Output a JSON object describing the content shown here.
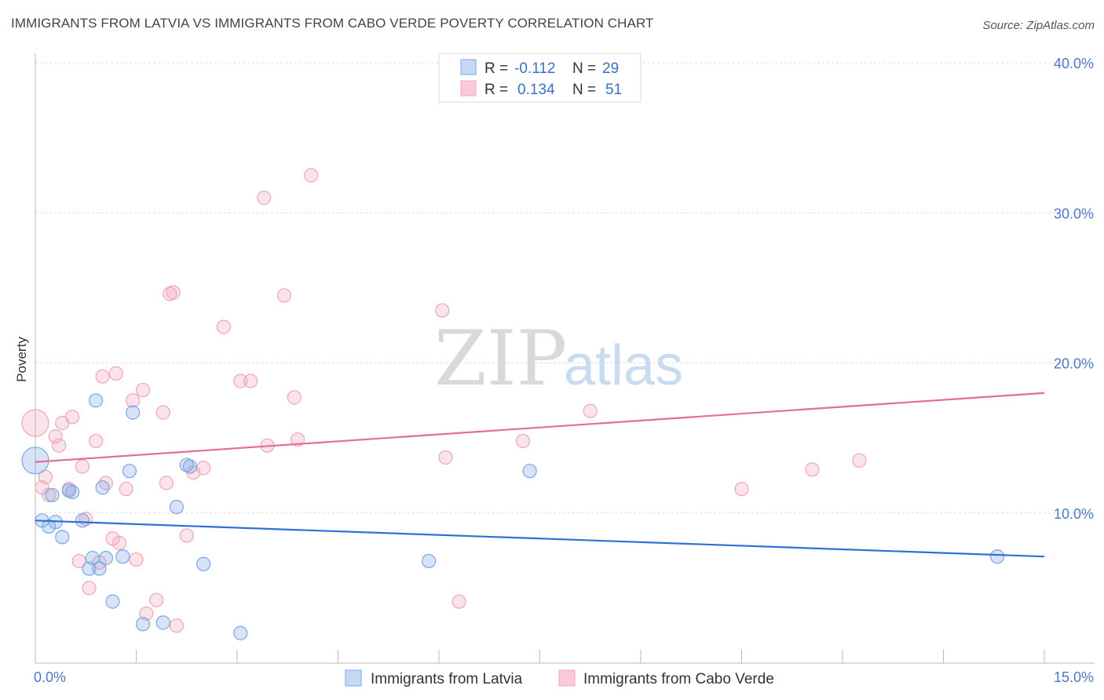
{
  "title": "IMMIGRANTS FROM LATVIA VS IMMIGRANTS FROM CABO VERDE POVERTY CORRELATION CHART",
  "source": "Source: ZipAtlas.com",
  "watermark": {
    "zip": "ZIP",
    "atlas": "atlas"
  },
  "legend": {
    "rows": [
      {
        "r_label": "R =",
        "r_value": "-0.112",
        "n_label": "N =",
        "n_value": "29"
      },
      {
        "r_label": "R =",
        "r_value": "0.134",
        "n_label": "N =",
        "n_value": "51"
      }
    ]
  },
  "bottom_legend": [
    "Immigrants from Latvia",
    "Immigrants from Cabo Verde"
  ],
  "chart_data": {
    "type": "scatter",
    "title": "IMMIGRANTS FROM LATVIA VS IMMIGRANTS FROM CABO VERDE POVERTY CORRELATION CHART",
    "xlabel": "",
    "ylabel": "Poverty",
    "xlim": [
      0,
      15
    ],
    "ylim": [
      0,
      40
    ],
    "x_tick_labels": [
      "0.0%",
      "15.0%"
    ],
    "y_tick_values": [
      10,
      20,
      30,
      40
    ],
    "y_tick_labels": [
      "10.0%",
      "20.0%",
      "30.0%",
      "40.0%"
    ],
    "grid": true,
    "legend_position": "top-center",
    "colors": {
      "latvia": "#7aa6e6",
      "cabo_verde": "#f0a5bb",
      "latvia_line": "#2f6fd6",
      "cabo_verde_line": "#e56d96"
    },
    "series": [
      {
        "name": "Immigrants from Latvia",
        "color": "#7aa6e6",
        "trend": {
          "x": [
            0,
            15
          ],
          "y": [
            9.5,
            7.1
          ]
        },
        "points": [
          [
            0.0,
            13.5,
            "large"
          ],
          [
            0.1,
            9.5
          ],
          [
            0.2,
            9.1
          ],
          [
            0.25,
            11.2
          ],
          [
            0.4,
            8.4
          ],
          [
            0.5,
            11.5
          ],
          [
            0.55,
            11.4
          ],
          [
            0.7,
            9.5
          ],
          [
            0.85,
            7.0
          ],
          [
            0.9,
            17.5
          ],
          [
            0.95,
            6.3
          ],
          [
            0.8,
            6.3
          ],
          [
            1.0,
            11.7
          ],
          [
            1.05,
            7.0
          ],
          [
            1.15,
            4.1
          ],
          [
            1.3,
            7.1
          ],
          [
            1.4,
            12.8
          ],
          [
            1.45,
            16.7
          ],
          [
            1.6,
            2.6
          ],
          [
            1.9,
            2.7
          ],
          [
            2.1,
            10.4
          ],
          [
            2.25,
            13.2
          ],
          [
            2.3,
            13.1
          ],
          [
            2.5,
            6.6
          ],
          [
            3.05,
            2.0
          ],
          [
            5.85,
            6.8
          ],
          [
            7.35,
            12.8
          ],
          [
            14.3,
            7.1
          ],
          [
            0.3,
            9.4
          ]
        ]
      },
      {
        "name": "Immigrants from Cabo Verde",
        "color": "#f0a5bb",
        "trend": {
          "x": [
            0,
            15
          ],
          "y": [
            13.4,
            18.0
          ]
        },
        "points": [
          [
            0.0,
            16.0,
            "large"
          ],
          [
            0.1,
            11.7
          ],
          [
            0.15,
            12.4
          ],
          [
            0.2,
            11.2
          ],
          [
            0.3,
            15.1
          ],
          [
            0.35,
            14.5
          ],
          [
            0.4,
            16.0
          ],
          [
            0.5,
            11.6
          ],
          [
            0.55,
            16.4
          ],
          [
            0.65,
            6.8
          ],
          [
            0.7,
            13.1
          ],
          [
            0.75,
            9.6
          ],
          [
            0.8,
            5.0
          ],
          [
            0.9,
            14.8
          ],
          [
            0.95,
            6.7
          ],
          [
            1.0,
            19.1
          ],
          [
            1.05,
            12.0
          ],
          [
            1.2,
            19.3
          ],
          [
            1.15,
            8.3
          ],
          [
            1.25,
            8.0
          ],
          [
            1.35,
            11.6
          ],
          [
            1.45,
            17.5
          ],
          [
            1.5,
            6.9
          ],
          [
            1.6,
            18.2
          ],
          [
            1.65,
            3.3
          ],
          [
            1.8,
            4.2
          ],
          [
            1.9,
            16.7
          ],
          [
            1.95,
            12.0
          ],
          [
            2.0,
            24.6
          ],
          [
            2.05,
            24.7
          ],
          [
            2.1,
            2.5
          ],
          [
            2.25,
            8.5
          ],
          [
            2.35,
            12.7
          ],
          [
            2.5,
            13.0
          ],
          [
            2.8,
            22.4
          ],
          [
            3.05,
            18.8
          ],
          [
            3.2,
            18.8
          ],
          [
            3.4,
            31.0
          ],
          [
            3.45,
            14.5
          ],
          [
            3.7,
            24.5
          ],
          [
            3.85,
            17.7
          ],
          [
            3.9,
            14.9
          ],
          [
            4.1,
            32.5
          ],
          [
            6.05,
            23.5
          ],
          [
            6.1,
            13.7
          ],
          [
            6.3,
            4.1
          ],
          [
            7.25,
            14.8
          ],
          [
            8.25,
            16.8
          ],
          [
            10.5,
            11.6
          ],
          [
            11.55,
            12.9
          ],
          [
            12.25,
            13.5
          ]
        ]
      }
    ]
  }
}
